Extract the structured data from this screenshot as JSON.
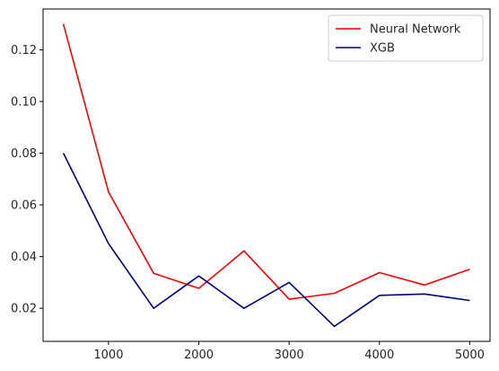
{
  "chart_data": {
    "type": "line",
    "x": [
      500,
      1000,
      1500,
      2000,
      2500,
      3000,
      3500,
      4000,
      4500,
      5000
    ],
    "series": [
      {
        "name": "Neural Network",
        "color": "#ff0000",
        "values": [
          0.13,
          0.065,
          0.0335,
          0.0277,
          0.0422,
          0.0235,
          0.0258,
          0.0338,
          0.029,
          0.0351
        ]
      },
      {
        "name": "XGB",
        "color": "#000080",
        "values": [
          0.08,
          0.045,
          0.02,
          0.0325,
          0.02,
          0.03,
          0.013,
          0.025,
          0.0255,
          0.023
        ]
      }
    ],
    "xlim": [
      275,
      5225
    ],
    "ylim": [
      0.0072,
      0.1358
    ],
    "x_ticks": [
      1000,
      2000,
      3000,
      4000,
      5000
    ],
    "y_ticks": [
      0.02,
      0.04,
      0.06,
      0.08,
      0.1,
      0.12
    ],
    "x_tick_labels": [
      "1000",
      "2000",
      "3000",
      "4000",
      "5000"
    ],
    "y_tick_labels": [
      "0.02",
      "0.04",
      "0.06",
      "0.08",
      "0.10",
      "0.12"
    ],
    "title": "",
    "xlabel": "",
    "ylabel": "",
    "grid": false,
    "legend_position": "top-right"
  }
}
